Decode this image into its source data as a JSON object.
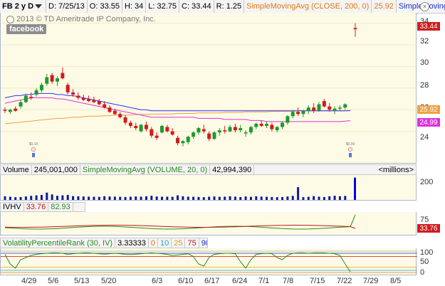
{
  "header": {
    "symbol": "FB 2 y D",
    "date": "D: 7/25/13",
    "open": "O: 33.55",
    "high": "H: 34",
    "low": "L: 32.75",
    "close": "C: 33.44",
    "range": "R: 1.25",
    "sma_label": "SimpleMovingAvg (CLOSE, 200, 0)",
    "sma_value": "25.92",
    "sma2_label": "SimpleMoving..."
  },
  "main_chart": {
    "copyright": "2013 © TD Ameritrade IP Company, Inc.",
    "badge": "facebook",
    "y_ticks": [
      "34",
      "32",
      "30",
      "28",
      "26",
      "24"
    ],
    "last_price": "33.44",
    "sma200_value": "25.92",
    "sma50_value": "24.99",
    "colors": {
      "up": "#1f9a2e",
      "down": "#d01c1c",
      "sma_blue": "#3030ff",
      "sma_magenta": "#e030e0",
      "sma_orange": "#f0a040",
      "bg": "#fdfbe6"
    },
    "candles": [
      {
        "o": 26.0,
        "h": 26.2,
        "l": 25.7,
        "c": 25.9
      },
      {
        "o": 25.8,
        "h": 26.1,
        "l": 25.6,
        "c": 26.0
      },
      {
        "o": 26.1,
        "h": 26.3,
        "l": 25.8,
        "c": 25.9
      },
      {
        "o": 26.3,
        "h": 26.9,
        "l": 26.1,
        "c": 26.7
      },
      {
        "o": 26.7,
        "h": 27.5,
        "l": 26.6,
        "c": 27.3
      },
      {
        "o": 27.2,
        "h": 27.6,
        "l": 26.9,
        "c": 27.1
      },
      {
        "o": 27.4,
        "h": 28.0,
        "l": 27.2,
        "c": 27.8
      },
      {
        "o": 27.8,
        "h": 28.5,
        "l": 27.6,
        "c": 28.3
      },
      {
        "o": 28.4,
        "h": 29.3,
        "l": 28.2,
        "c": 29.0
      },
      {
        "o": 29.2,
        "h": 29.4,
        "l": 28.4,
        "c": 28.6
      },
      {
        "o": 28.6,
        "h": 29.1,
        "l": 28.2,
        "c": 28.9
      },
      {
        "o": 29.4,
        "h": 29.9,
        "l": 28.8,
        "c": 28.9
      },
      {
        "o": 28.3,
        "h": 28.5,
        "l": 27.4,
        "c": 27.6
      },
      {
        "o": 27.6,
        "h": 27.9,
        "l": 27.2,
        "c": 27.4
      },
      {
        "o": 27.3,
        "h": 27.6,
        "l": 26.9,
        "c": 27.1
      },
      {
        "o": 27.1,
        "h": 27.4,
        "l": 26.8,
        "c": 26.9
      },
      {
        "o": 27.0,
        "h": 27.3,
        "l": 26.7,
        "c": 26.8
      },
      {
        "o": 26.9,
        "h": 27.2,
        "l": 26.6,
        "c": 26.7
      },
      {
        "o": 26.8,
        "h": 27.0,
        "l": 26.4,
        "c": 26.5
      },
      {
        "o": 26.5,
        "h": 26.8,
        "l": 26.1,
        "c": 26.2
      },
      {
        "o": 26.2,
        "h": 26.4,
        "l": 25.7,
        "c": 25.8
      },
      {
        "o": 25.9,
        "h": 26.1,
        "l": 25.5,
        "c": 25.6
      },
      {
        "o": 25.6,
        "h": 25.8,
        "l": 25.2,
        "c": 25.3
      },
      {
        "o": 25.3,
        "h": 25.5,
        "l": 24.6,
        "c": 24.8
      },
      {
        "o": 24.8,
        "h": 25.0,
        "l": 24.3,
        "c": 24.5
      },
      {
        "o": 24.5,
        "h": 24.8,
        "l": 24.1,
        "c": 24.3
      },
      {
        "o": 24.0,
        "h": 24.7,
        "l": 23.9,
        "c": 24.6
      },
      {
        "o": 24.6,
        "h": 24.9,
        "l": 24.0,
        "c": 24.2
      },
      {
        "o": 24.2,
        "h": 24.4,
        "l": 23.4,
        "c": 23.6
      },
      {
        "o": 23.6,
        "h": 23.9,
        "l": 23.2,
        "c": 23.4
      },
      {
        "o": 23.9,
        "h": 24.6,
        "l": 23.8,
        "c": 24.5
      },
      {
        "o": 24.4,
        "h": 24.6,
        "l": 23.9,
        "c": 24.0
      },
      {
        "o": 24.0,
        "h": 24.3,
        "l": 23.6,
        "c": 23.7
      },
      {
        "o": 23.4,
        "h": 23.6,
        "l": 22.7,
        "c": 22.9
      },
      {
        "o": 22.9,
        "h": 23.2,
        "l": 22.6,
        "c": 23.1
      },
      {
        "o": 23.0,
        "h": 23.6,
        "l": 22.8,
        "c": 23.5
      },
      {
        "o": 23.5,
        "h": 24.0,
        "l": 23.3,
        "c": 23.9
      },
      {
        "o": 23.9,
        "h": 24.4,
        "l": 23.7,
        "c": 24.3
      },
      {
        "o": 24.2,
        "h": 24.6,
        "l": 23.8,
        "c": 24.0
      },
      {
        "o": 23.8,
        "h": 24.0,
        "l": 23.1,
        "c": 23.3
      },
      {
        "o": 23.3,
        "h": 24.0,
        "l": 23.2,
        "c": 23.9
      },
      {
        "o": 23.9,
        "h": 24.3,
        "l": 23.6,
        "c": 24.1
      },
      {
        "o": 24.1,
        "h": 24.5,
        "l": 23.8,
        "c": 24.0
      },
      {
        "o": 24.0,
        "h": 24.6,
        "l": 23.9,
        "c": 24.4
      },
      {
        "o": 24.4,
        "h": 24.7,
        "l": 23.9,
        "c": 24.1
      },
      {
        "o": 24.1,
        "h": 24.6,
        "l": 23.9,
        "c": 24.3
      },
      {
        "o": 23.8,
        "h": 24.1,
        "l": 23.5,
        "c": 23.9
      },
      {
        "o": 23.9,
        "h": 24.5,
        "l": 23.7,
        "c": 24.4
      },
      {
        "o": 24.4,
        "h": 24.8,
        "l": 24.2,
        "c": 24.7
      },
      {
        "o": 24.7,
        "h": 25.0,
        "l": 24.4,
        "c": 24.5
      },
      {
        "o": 24.5,
        "h": 24.9,
        "l": 24.3,
        "c": 24.7
      },
      {
        "o": 24.6,
        "h": 24.8,
        "l": 24.0,
        "c": 24.2
      },
      {
        "o": 24.1,
        "h": 24.5,
        "l": 23.9,
        "c": 24.4
      },
      {
        "o": 24.4,
        "h": 24.9,
        "l": 24.2,
        "c": 24.8
      },
      {
        "o": 24.8,
        "h": 25.5,
        "l": 24.6,
        "c": 25.4
      },
      {
        "o": 25.4,
        "h": 26.0,
        "l": 25.2,
        "c": 25.8
      },
      {
        "o": 25.8,
        "h": 26.2,
        "l": 25.4,
        "c": 25.6
      },
      {
        "o": 25.6,
        "h": 26.0,
        "l": 25.3,
        "c": 25.9
      },
      {
        "o": 25.9,
        "h": 26.4,
        "l": 25.6,
        "c": 26.2
      },
      {
        "o": 26.2,
        "h": 26.6,
        "l": 25.7,
        "c": 25.9
      },
      {
        "o": 25.9,
        "h": 26.7,
        "l": 25.8,
        "c": 26.5
      },
      {
        "o": 26.8,
        "h": 27.0,
        "l": 26.2,
        "c": 26.3
      },
      {
        "o": 26.3,
        "h": 26.6,
        "l": 25.8,
        "c": 26.0
      },
      {
        "o": 25.9,
        "h": 26.3,
        "l": 25.6,
        "c": 26.1
      },
      {
        "o": 26.1,
        "h": 26.4,
        "l": 25.9,
        "c": 26.2
      },
      {
        "o": 26.2,
        "h": 26.6,
        "l": 26.0,
        "c": 26.5
      },
      {
        "o": 33.55,
        "h": 34.0,
        "l": 32.75,
        "c": 33.44
      }
    ],
    "sma200": [
      27.1,
      27.2,
      27.3,
      27.3,
      27.4,
      27.4,
      27.5,
      27.5,
      27.5,
      27.5,
      27.4,
      27.4,
      27.3,
      27.3,
      27.2,
      27.1,
      27.0,
      26.9,
      26.8,
      26.7,
      26.6,
      26.5,
      26.4,
      26.3,
      26.2,
      26.1,
      26.0,
      26.0,
      25.9,
      25.9,
      25.9,
      25.9,
      25.9,
      25.9,
      25.9,
      25.9,
      25.9,
      25.9,
      25.9,
      25.9,
      25.9,
      25.9,
      25.9,
      25.9,
      25.9,
      25.9,
      25.9,
      25.9,
      25.9,
      25.9,
      25.9,
      25.9,
      25.9,
      25.9,
      25.9,
      25.9,
      25.9,
      25.9,
      25.9,
      25.9,
      25.9,
      25.9,
      25.9,
      25.9,
      25.9,
      25.9,
      25.92
    ],
    "sma50": [
      26.6,
      26.7,
      26.8,
      26.9,
      27.0,
      27.1,
      27.1,
      27.1,
      27.1,
      27.1,
      27.0,
      27.0,
      26.9,
      26.8,
      26.7,
      26.6,
      26.5,
      26.4,
      26.3,
      26.2,
      26.1,
      26.0,
      25.9,
      25.8,
      25.7,
      25.6,
      25.5,
      25.4,
      25.3,
      25.3,
      25.3,
      25.3,
      25.3,
      25.3,
      25.3,
      25.3,
      25.3,
      25.2,
      25.2,
      25.2,
      25.2,
      25.2,
      25.1,
      25.1,
      25.1,
      25.1,
      25.1,
      25.0,
      25.0,
      25.0,
      24.9,
      24.9,
      24.9,
      24.9,
      24.9,
      24.9,
      24.9,
      24.9,
      24.9,
      24.9,
      24.9,
      24.9,
      24.9,
      24.9,
      24.9,
      24.95,
      24.99
    ],
    "sma_orange": [
      24.7,
      24.75,
      24.8,
      24.85,
      24.9,
      24.95,
      25.0,
      25.05,
      25.1,
      25.15,
      25.2,
      25.2,
      25.25,
      25.3,
      25.3,
      25.35,
      25.4,
      25.4,
      25.4,
      25.45,
      25.45,
      25.5,
      25.5,
      25.5,
      25.5,
      25.55,
      25.55,
      25.55,
      25.6,
      25.6,
      25.6,
      25.6,
      25.6,
      25.65,
      25.65,
      25.65,
      25.65,
      25.7,
      25.7,
      25.7,
      25.7,
      25.7,
      25.75,
      25.75,
      25.75,
      25.75,
      25.8,
      25.8,
      25.8,
      25.8,
      25.8,
      25.85,
      25.85,
      25.85,
      25.85,
      25.85,
      25.9,
      25.9,
      25.9,
      25.9,
      25.9,
      25.9,
      25.9,
      25.9,
      25.9,
      25.9,
      25.9
    ]
  },
  "volume_pane": {
    "label": "Volume",
    "value": "245,001,000",
    "sma_label": "SimpleMovingAvg (VOLUME, 20, 0)",
    "sma_value": "42,994,390",
    "units": "<millions>",
    "y_ticks": [
      "200",
      "0"
    ],
    "volumes": [
      40,
      35,
      30,
      32,
      38,
      45,
      50,
      55,
      80,
      60,
      45,
      50,
      55,
      42,
      40,
      38,
      36,
      35,
      34,
      40,
      38,
      36,
      34,
      32,
      35,
      38,
      36,
      40,
      45,
      38,
      35,
      36,
      34,
      50,
      40,
      36,
      34,
      32,
      30,
      35,
      38,
      34,
      36,
      40,
      36,
      32,
      38,
      34,
      40,
      36,
      34,
      32,
      30,
      32,
      38,
      44,
      140,
      30,
      34,
      42,
      36,
      32,
      40,
      46,
      40,
      44,
      245
    ],
    "volume_colors": {
      "up": "#0a1aa0",
      "spike": "#0000e0"
    }
  },
  "ivhv_pane": {
    "label": "IVHV",
    "iv_value": "33.76",
    "hv_value": "82.93",
    "y_tick": "75",
    "iv_box": "33.76",
    "colors": {
      "iv": "#c81414",
      "hv": "#2a8a1f"
    }
  },
  "vpr_pane": {
    "label": "VolatilityPercentileRank (30, IV)",
    "value": "3.33333",
    "levels": [
      "0",
      "10",
      "25",
      "75",
      "90",
      "100"
    ],
    "y_ticks": [
      "100",
      "50",
      "0"
    ],
    "values": [
      85,
      40,
      20,
      60,
      70,
      80,
      85,
      88,
      90,
      92,
      92,
      90,
      85,
      88,
      90,
      92,
      92,
      90,
      88,
      86,
      88,
      90,
      88,
      85,
      84,
      86,
      88,
      90,
      92,
      90,
      88,
      85,
      80,
      82,
      85,
      88,
      75,
      40,
      30,
      70,
      85,
      88,
      90,
      90,
      88,
      50,
      20,
      60,
      85,
      88,
      90,
      88,
      70,
      60,
      80,
      90,
      92,
      92,
      90,
      92,
      92,
      92,
      90,
      88,
      80,
      40,
      3
    ]
  },
  "x_axis": {
    "labels": [
      "4/29",
      "5/6",
      "5/13",
      "5/20",
      "6/3",
      "6/10",
      "6/17",
      "6/24",
      "7/1",
      "7/8",
      "7/15",
      "7/22",
      "7/29",
      "8/5"
    ]
  },
  "events": {
    "marker1": "$0.10",
    "marker2": "$0.00"
  }
}
